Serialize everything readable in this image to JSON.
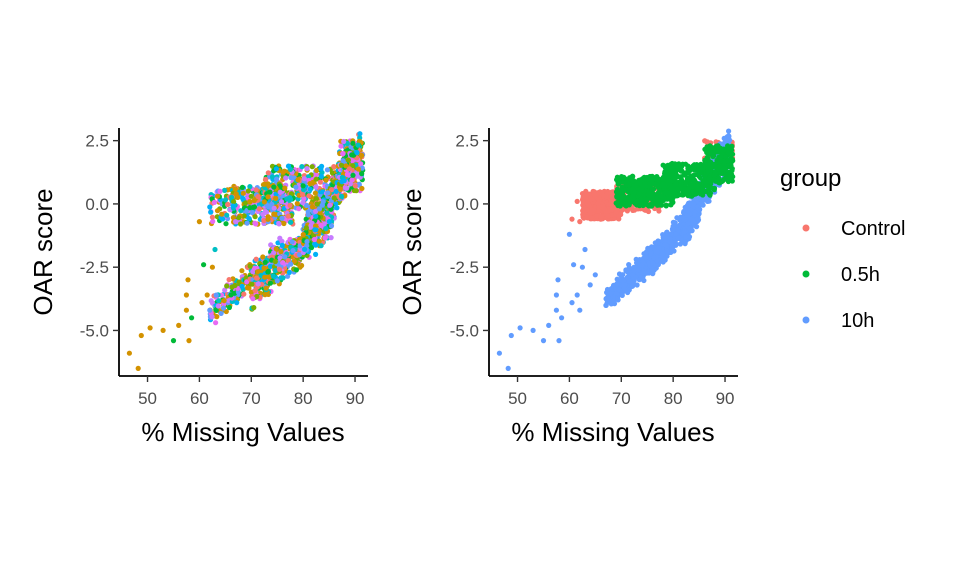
{
  "chart_data": [
    {
      "type": "scatter",
      "panel": "left",
      "xlabel": "% Missing Values",
      "ylabel": "OAR score",
      "xlim": [
        44.5,
        92.5
      ],
      "ylim": [
        -6.8,
        3.0
      ],
      "xticks": [
        50,
        60,
        70,
        80,
        90
      ],
      "yticks": [
        -5.0,
        -2.5,
        0.0,
        2.5
      ],
      "xtick_labels": [
        "50",
        "60",
        "70",
        "80",
        "90"
      ],
      "ytick_labels": [
        "-5.0",
        "-2.5",
        "0.0",
        "2.5"
      ],
      "grid": false,
      "legend": false,
      "colored_by": "sample",
      "palette": [
        "#C77CFF",
        "#F8766D",
        "#00BA38",
        "#619CFF",
        "#00BFC4",
        "#D39200",
        "#E76BF3",
        "#7CAE00",
        "#00B0F6",
        "#CD9600"
      ],
      "points": [
        {
          "x": 46.5,
          "y": -5.9,
          "c": 5
        },
        {
          "x": 48.2,
          "y": -6.5,
          "c": 5
        },
        {
          "x": 48.8,
          "y": -5.2,
          "c": 5
        },
        {
          "x": 50.5,
          "y": -4.9,
          "c": 5
        },
        {
          "x": 53.0,
          "y": -5.0,
          "c": 5
        },
        {
          "x": 55.0,
          "y": -5.4,
          "c": 2
        },
        {
          "x": 56.0,
          "y": -4.8,
          "c": 5
        },
        {
          "x": 57.5,
          "y": -4.2,
          "c": 5
        },
        {
          "x": 58.0,
          "y": -5.4,
          "c": 5
        },
        {
          "x": 58.5,
          "y": -4.5,
          "c": 2
        },
        {
          "x": 57.8,
          "y": -3.0,
          "c": 5
        },
        {
          "x": 57.5,
          "y": -3.6,
          "c": 5
        },
        {
          "x": 60.5,
          "y": -3.9,
          "c": 5
        },
        {
          "x": 60.8,
          "y": -2.4,
          "c": 2
        },
        {
          "x": 61.5,
          "y": -3.6,
          "c": 5
        },
        {
          "x": 62.0,
          "y": -4.2,
          "c": 3
        },
        {
          "x": 60.0,
          "y": -0.7,
          "c": 5
        },
        {
          "x": 62.5,
          "y": -2.5,
          "c": 5
        },
        {
          "x": 63.0,
          "y": -1.8,
          "c": 4
        }
      ],
      "clouds": [
        {
          "x": [
            62,
            78
          ],
          "y": [
            -0.8,
            0.7
          ],
          "n": 320,
          "c": "mix"
        },
        {
          "x": [
            72,
            86
          ],
          "y": [
            -0.2,
            1.5
          ],
          "n": 280,
          "c": "mix"
        },
        {
          "x": [
            62,
            76
          ],
          "y": [
            -4.3,
            -1.8
          ],
          "n": 220,
          "c": "mix",
          "trend": true
        },
        {
          "x": [
            70,
            86
          ],
          "y": [
            -3.5,
            -0.5
          ],
          "n": 420,
          "c": "mix",
          "trend": true
        },
        {
          "x": [
            80,
            91
          ],
          "y": [
            -1.5,
            2.2
          ],
          "n": 420,
          "c": "mix",
          "trend": true
        },
        {
          "x": [
            87,
            91.5
          ],
          "y": [
            0.5,
            2.5
          ],
          "n": 200,
          "c": "mix"
        }
      ]
    },
    {
      "type": "scatter",
      "panel": "right",
      "xlabel": "% Missing Values",
      "ylabel": "OAR score",
      "xlim": [
        44.5,
        92.5
      ],
      "ylim": [
        -6.8,
        3.0
      ],
      "xticks": [
        50,
        60,
        70,
        80,
        90
      ],
      "yticks": [
        -5.0,
        -2.5,
        0.0,
        2.5
      ],
      "xtick_labels": [
        "50",
        "60",
        "70",
        "80",
        "90"
      ],
      "ytick_labels": [
        "-5.0",
        "-2.5",
        "0.0",
        "2.5"
      ],
      "grid": false,
      "legend": true,
      "legend_position": "right",
      "legend_title": "group",
      "series": [
        {
          "name": "Control",
          "color": "#F8766D",
          "clouds": [
            {
              "x": [
                62.5,
                70
              ],
              "y": [
                -0.6,
                0.5
              ],
              "n": 380
            },
            {
              "x": [
                69,
                78
              ],
              "y": [
                -0.3,
                0.8
              ],
              "n": 120
            },
            {
              "x": [
                86,
                91.5
              ],
              "y": [
                1.6,
                2.5
              ],
              "n": 60
            }
          ],
          "points": [
            {
              "x": 60.5,
              "y": -0.6
            },
            {
              "x": 61.5,
              "y": 0.1
            },
            {
              "x": 62.0,
              "y": -0.7
            }
          ]
        },
        {
          "name": "0.5h",
          "color": "#00BA38",
          "clouds": [
            {
              "x": [
                69,
                80
              ],
              "y": [
                -0.1,
                1.1
              ],
              "n": 360
            },
            {
              "x": [
                78,
                88
              ],
              "y": [
                0.3,
                1.6
              ],
              "n": 260
            },
            {
              "x": [
                86,
                91.5
              ],
              "y": [
                0.8,
                2.3
              ],
              "n": 180
            }
          ],
          "points": []
        },
        {
          "name": "10h",
          "color": "#619CFF",
          "clouds": [
            {
              "x": [
                67,
                79
              ],
              "y": [
                -3.8,
                -1.6
              ],
              "n": 320,
              "trend": true
            },
            {
              "x": [
                74,
                85
              ],
              "y": [
                -2.6,
                -0.2
              ],
              "n": 380,
              "trend": true
            },
            {
              "x": [
                82,
                91
              ],
              "y": [
                -1.0,
                2.3
              ],
              "n": 320,
              "trend": true
            }
          ],
          "points": [
            {
              "x": 46.5,
              "y": -5.9
            },
            {
              "x": 48.2,
              "y": -6.5
            },
            {
              "x": 48.8,
              "y": -5.2
            },
            {
              "x": 50.5,
              "y": -4.9
            },
            {
              "x": 53.0,
              "y": -5.0
            },
            {
              "x": 55.0,
              "y": -5.4
            },
            {
              "x": 56.0,
              "y": -4.8
            },
            {
              "x": 57.5,
              "y": -4.2
            },
            {
              "x": 58.0,
              "y": -5.4
            },
            {
              "x": 58.5,
              "y": -4.5
            },
            {
              "x": 57.8,
              "y": -3.0
            },
            {
              "x": 57.5,
              "y": -3.6
            },
            {
              "x": 60.5,
              "y": -3.9
            },
            {
              "x": 60.8,
              "y": -2.4
            },
            {
              "x": 61.5,
              "y": -3.6
            },
            {
              "x": 62.0,
              "y": -4.2
            },
            {
              "x": 60.0,
              "y": -1.2
            },
            {
              "x": 62.5,
              "y": -2.5
            },
            {
              "x": 63.0,
              "y": -1.8
            },
            {
              "x": 64.0,
              "y": -3.2
            },
            {
              "x": 65.0,
              "y": -2.8
            }
          ]
        }
      ]
    }
  ]
}
